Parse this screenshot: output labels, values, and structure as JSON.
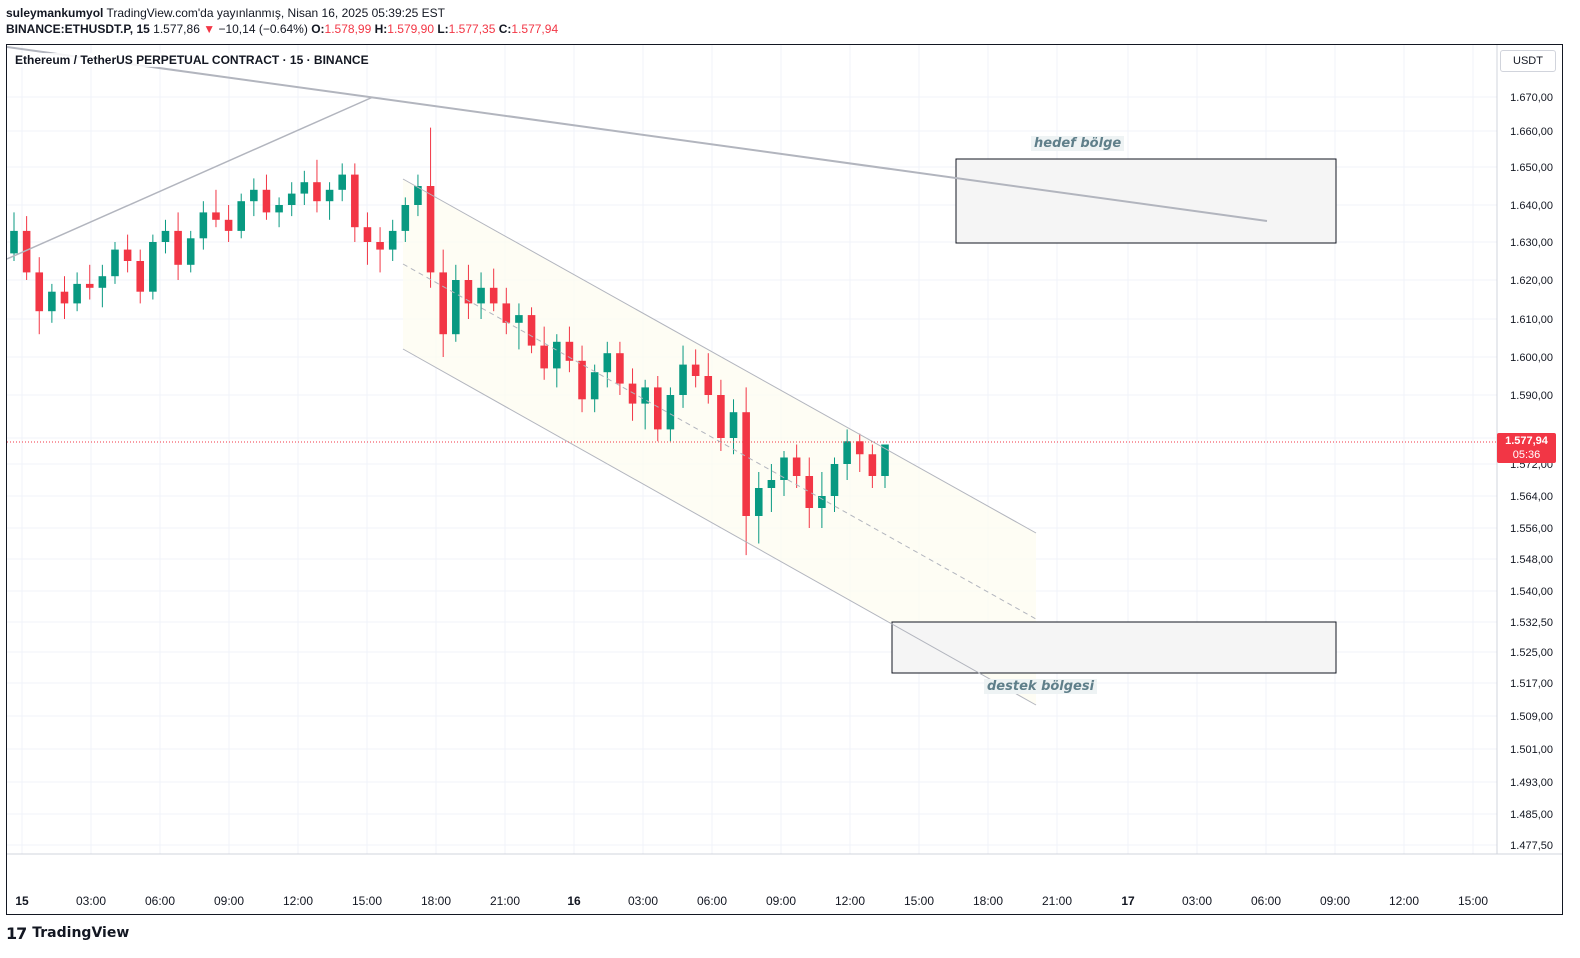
{
  "header": {
    "author": "suleymankumyol",
    "published": "TradingView.com'da yayınlanmış, Nisan 16, 2025 05:39:25 EST",
    "symbol_line": "BINANCE:ETHUSDT.P, 15",
    "last_price": "1.577,86",
    "change_arrow": "▼",
    "change": "−10,14 (−0.64%)",
    "open_label": "O:",
    "open": "1.578,99",
    "high_label": "H:",
    "high": "1.579,90",
    "low_label": "L:",
    "low": "1.577,35",
    "close_label": "C:",
    "close": "1.577,94"
  },
  "chart_title": "Ethereum / TetherUS PERPETUAL CONTRACT · 15 · BINANCE",
  "currency": "USDT",
  "price_badge": {
    "price": "1.577,94",
    "countdown": "05:36"
  },
  "footer": {
    "logo_mark": "17",
    "logo_text": "TradingView"
  },
  "colors": {
    "up": "#089981",
    "down": "#f23645",
    "grid": "#f0f3fa",
    "line": "#b2b5be"
  },
  "chart_data": {
    "type": "candlestick",
    "symbol": "BINANCE:ETHUSDT.P",
    "interval": "15",
    "y_tick_labels": [
      "1.670,00",
      "1.660,00",
      "1.650,00",
      "1.640,00",
      "1.630,00",
      "1.620,00",
      "1.610,00",
      "1.600,00",
      "1.590,00",
      "1.580,00",
      "1.572,00",
      "1.564,00",
      "1.556,00",
      "1.548,00",
      "1.540,00",
      "1.532,50",
      "1.525,00",
      "1.517,00",
      "1.509,00",
      "1.501,00",
      "1.493,00",
      "1.485,00",
      "1.477,50"
    ],
    "x_tick_labels": [
      "15",
      "03:00",
      "06:00",
      "09:00",
      "12:00",
      "15:00",
      "18:00",
      "21:00",
      "16",
      "03:00",
      "06:00",
      "09:00",
      "12:00",
      "15:00",
      "18:00",
      "21:00",
      "17",
      "03:00",
      "06:00",
      "09:00",
      "12:00",
      "15:00"
    ],
    "bold_x_ticks": [
      "15",
      "16",
      "17"
    ],
    "ylim": [
      1471,
      1679
    ],
    "grid": true,
    "candles_note": "OHLC values estimated from the chart, ~70 bars of 15m from Apr 15 00:00 to Apr 16 13:45",
    "ohlc": [
      [
        1627,
        1638,
        1625,
        1633
      ],
      [
        1633,
        1637,
        1620,
        1622
      ],
      [
        1622,
        1626,
        1606,
        1612
      ],
      [
        1612,
        1619,
        1609,
        1617
      ],
      [
        1617,
        1621,
        1610,
        1614
      ],
      [
        1614,
        1622,
        1612,
        1619
      ],
      [
        1619,
        1624,
        1615,
        1618
      ],
      [
        1618,
        1624,
        1613,
        1621
      ],
      [
        1621,
        1630,
        1619,
        1628
      ],
      [
        1628,
        1632,
        1622,
        1625
      ],
      [
        1625,
        1628,
        1614,
        1617
      ],
      [
        1617,
        1632,
        1615,
        1630
      ],
      [
        1630,
        1636,
        1627,
        1633
      ],
      [
        1633,
        1638,
        1620,
        1624
      ],
      [
        1624,
        1633,
        1622,
        1631
      ],
      [
        1631,
        1641,
        1628,
        1638
      ],
      [
        1638,
        1644,
        1634,
        1636
      ],
      [
        1636,
        1640,
        1630,
        1633
      ],
      [
        1633,
        1643,
        1631,
        1641
      ],
      [
        1641,
        1647,
        1637,
        1644
      ],
      [
        1644,
        1648,
        1636,
        1638
      ],
      [
        1638,
        1642,
        1634,
        1640
      ],
      [
        1640,
        1646,
        1637,
        1643
      ],
      [
        1643,
        1649,
        1640,
        1646
      ],
      [
        1646,
        1652,
        1638,
        1641
      ],
      [
        1641,
        1646,
        1636,
        1644
      ],
      [
        1644,
        1651,
        1641,
        1648
      ],
      [
        1648,
        1651,
        1630,
        1634
      ],
      [
        1634,
        1638,
        1624,
        1630
      ],
      [
        1630,
        1634,
        1622,
        1628
      ],
      [
        1628,
        1636,
        1625,
        1633
      ],
      [
        1633,
        1642,
        1630,
        1640
      ],
      [
        1640,
        1648,
        1637,
        1645
      ],
      [
        1645,
        1661,
        1618,
        1622
      ],
      [
        1622,
        1628,
        1600,
        1606
      ],
      [
        1606,
        1624,
        1604,
        1620
      ],
      [
        1620,
        1624,
        1610,
        1614
      ],
      [
        1614,
        1622,
        1610,
        1618
      ],
      [
        1618,
        1623,
        1612,
        1614
      ],
      [
        1614,
        1618,
        1606,
        1609
      ],
      [
        1609,
        1614,
        1602,
        1611
      ],
      [
        1611,
        1613,
        1601,
        1603
      ],
      [
        1603,
        1608,
        1594,
        1597
      ],
      [
        1597,
        1606,
        1592,
        1604
      ],
      [
        1604,
        1608,
        1596,
        1599
      ],
      [
        1599,
        1603,
        1586,
        1589
      ],
      [
        1589,
        1598,
        1586,
        1596
      ],
      [
        1596,
        1604,
        1592,
        1601
      ],
      [
        1601,
        1604,
        1590,
        1593
      ],
      [
        1593,
        1597,
        1584,
        1588
      ],
      [
        1588,
        1594,
        1582,
        1592
      ],
      [
        1592,
        1595,
        1579,
        1582
      ],
      [
        1582,
        1592,
        1579,
        1590
      ],
      [
        1590,
        1603,
        1587,
        1598
      ],
      [
        1598,
        1602,
        1592,
        1595
      ],
      [
        1595,
        1601,
        1588,
        1590
      ],
      [
        1590,
        1594,
        1576,
        1580
      ],
      [
        1580,
        1589,
        1575,
        1586
      ],
      [
        1586,
        1592,
        1549,
        1559
      ],
      [
        1559,
        1570,
        1552,
        1566
      ],
      [
        1566,
        1572,
        1560,
        1568
      ],
      [
        1568,
        1576,
        1564,
        1574
      ],
      [
        1574,
        1578,
        1566,
        1569
      ],
      [
        1569,
        1574,
        1556,
        1561
      ],
      [
        1561,
        1570,
        1556,
        1564
      ],
      [
        1564,
        1574,
        1560,
        1572
      ],
      [
        1572,
        1582,
        1568,
        1579
      ],
      [
        1579,
        1581,
        1570,
        1575
      ],
      [
        1575,
        1578,
        1566,
        1569
      ],
      [
        1569,
        1578,
        1566,
        1578
      ]
    ],
    "current_price": 1577.94
  }
}
